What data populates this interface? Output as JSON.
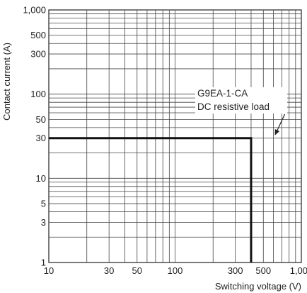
{
  "chart_data": {
    "type": "line",
    "title": "",
    "xlabel": "Switching voltage (V)",
    "ylabel": "Contact current (A)",
    "x_scale": "log",
    "y_scale": "log",
    "xlim": [
      10,
      1000
    ],
    "ylim": [
      1,
      1000
    ],
    "grid": true,
    "x_ticks": [
      {
        "value": 10,
        "label": "10"
      },
      {
        "value": 30,
        "label": "30"
      },
      {
        "value": 50,
        "label": "50"
      },
      {
        "value": 100,
        "label": "100"
      },
      {
        "value": 300,
        "label": "300"
      },
      {
        "value": 500,
        "label": "500"
      },
      {
        "value": 1000,
        "label": "1,000"
      }
    ],
    "y_ticks": [
      {
        "value": 1,
        "label": "1"
      },
      {
        "value": 3,
        "label": "3"
      },
      {
        "value": 5,
        "label": "5"
      },
      {
        "value": 10,
        "label": "10"
      },
      {
        "value": 30,
        "label": "30"
      },
      {
        "value": 50,
        "label": "50"
      },
      {
        "value": 100,
        "label": "100"
      },
      {
        "value": 300,
        "label": "300"
      },
      {
        "value": 500,
        "label": "500"
      },
      {
        "value": 1000,
        "label": "1,000"
      }
    ],
    "series": [
      {
        "x": [
          10,
          400,
          400
        ],
        "y": [
          30,
          30,
          1
        ]
      }
    ],
    "annotation": {
      "lines": [
        "G9EA-1-CA",
        "DC resistive load"
      ],
      "arrow_to": {
        "x": 250,
        "y": 30
      }
    }
  }
}
